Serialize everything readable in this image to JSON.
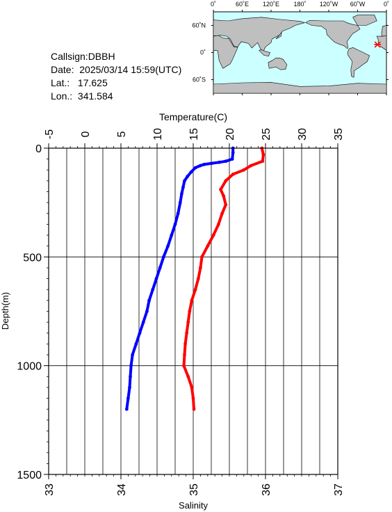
{
  "info": {
    "callsign": "Callsign:DBBH",
    "date": "Date:  2025/03/14 15:59(UTC)",
    "lat": "Lat.:   17.625",
    "lon": "Lon.:  341.584"
  },
  "map": {
    "lon_ticks": [
      "0˚",
      "60˚E",
      "120˚E",
      "180˚",
      "120˚W",
      "60˚W",
      "0˚"
    ],
    "lat_ticks": [
      "60˚N",
      "0˚",
      "60˚S"
    ],
    "ocean_color": "#ccffff",
    "land_color": "#bfbfbf",
    "marker": {
      "lon": 341.584,
      "lat": 17.625,
      "color": "#ff0000"
    }
  },
  "chart_data": {
    "type": "line",
    "ylabel": "Depth(m)",
    "top_axis_label": "Temperature(C)",
    "bottom_axis_label": "Salinity",
    "ylim": [
      0,
      1500
    ],
    "y_ticks": [
      "0",
      "500",
      "1000",
      "1500"
    ],
    "temp_lim": [
      -5,
      35
    ],
    "temp_ticks": [
      "-5",
      "0",
      "5",
      "10",
      "15",
      "20",
      "25",
      "30",
      "35"
    ],
    "sal_lim": [
      33,
      37
    ],
    "sal_ticks": [
      "33",
      "34",
      "35",
      "36",
      "37"
    ],
    "grid": true,
    "series": [
      {
        "axis": "temperature",
        "color": "#0000ff",
        "points": [
          [
            20.5,
            0
          ],
          [
            20.5,
            20
          ],
          [
            20.4,
            50
          ],
          [
            19.5,
            60
          ],
          [
            18.6,
            65
          ],
          [
            17.5,
            70
          ],
          [
            16.5,
            75
          ],
          [
            16.0,
            80
          ],
          [
            15.3,
            90
          ],
          [
            14.7,
            110
          ],
          [
            14.2,
            130
          ],
          [
            13.8,
            150
          ],
          [
            13.6,
            180
          ],
          [
            13.4,
            210
          ],
          [
            13.2,
            250
          ],
          [
            12.9,
            300
          ],
          [
            12.5,
            350
          ],
          [
            12.0,
            400
          ],
          [
            11.5,
            450
          ],
          [
            10.9,
            500
          ],
          [
            10.4,
            550
          ],
          [
            9.9,
            600
          ],
          [
            9.4,
            650
          ],
          [
            8.9,
            700
          ],
          [
            8.6,
            750
          ],
          [
            8.1,
            800
          ],
          [
            7.6,
            850
          ],
          [
            7.1,
            900
          ],
          [
            6.6,
            950
          ],
          [
            6.4,
            1000
          ],
          [
            6.3,
            1050
          ],
          [
            6.2,
            1100
          ],
          [
            6.0,
            1150
          ],
          [
            5.8,
            1200
          ]
        ]
      },
      {
        "axis": "salinity",
        "color": "#ff0000",
        "points": [
          [
            35.95,
            0
          ],
          [
            35.97,
            30
          ],
          [
            35.96,
            60
          ],
          [
            35.8,
            80
          ],
          [
            35.7,
            100
          ],
          [
            35.55,
            120
          ],
          [
            35.45,
            150
          ],
          [
            35.38,
            190
          ],
          [
            35.42,
            220
          ],
          [
            35.45,
            260
          ],
          [
            35.4,
            300
          ],
          [
            35.35,
            350
          ],
          [
            35.28,
            400
          ],
          [
            35.2,
            450
          ],
          [
            35.12,
            500
          ],
          [
            35.1,
            550
          ],
          [
            35.07,
            600
          ],
          [
            35.03,
            650
          ],
          [
            34.98,
            700
          ],
          [
            34.95,
            750
          ],
          [
            34.93,
            800
          ],
          [
            34.91,
            850
          ],
          [
            34.89,
            900
          ],
          [
            34.88,
            950
          ],
          [
            34.87,
            1000
          ],
          [
            34.93,
            1050
          ],
          [
            34.98,
            1100
          ],
          [
            35.0,
            1150
          ],
          [
            35.01,
            1200
          ]
        ]
      }
    ]
  }
}
